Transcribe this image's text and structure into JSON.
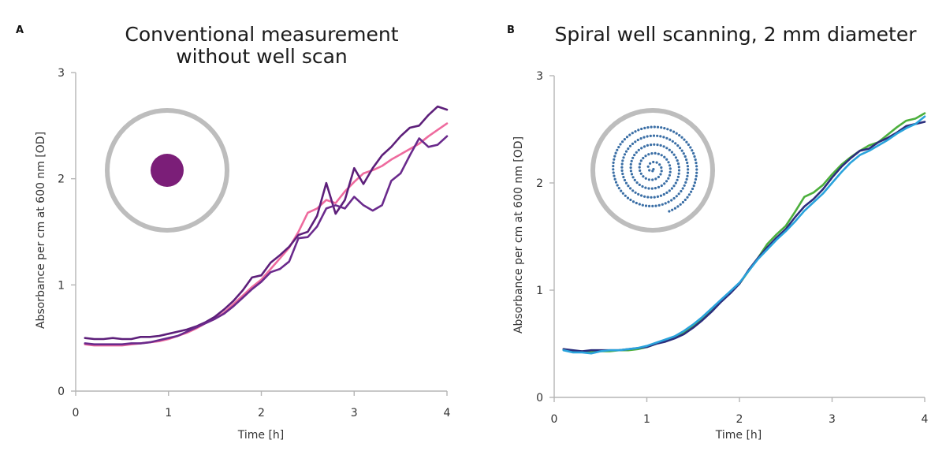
{
  "chart_data": [
    {
      "type": "line",
      "panel_label": "A",
      "title": [
        "Conventional measurement",
        "without well scan"
      ],
      "xlabel": "Time [h]",
      "ylabel": "Absorbance per cm at 600 nm [OD]",
      "xlim": [
        0,
        4
      ],
      "ylim": [
        0,
        3
      ],
      "xticks": [
        "0",
        "1",
        "2",
        "3",
        "4"
      ],
      "yticks": [
        "0",
        "1",
        "2",
        "3"
      ],
      "grid": false,
      "legend": "none",
      "inset": "well-single-spot",
      "inset_colors": {
        "ring": "#bdbdbd",
        "spot": "#7b1e78"
      },
      "series": [
        {
          "color": "#ee6b9e",
          "points": [
            [
              0.1,
              0.44
            ],
            [
              0.2,
              0.43
            ],
            [
              0.3,
              0.43
            ],
            [
              0.4,
              0.43
            ],
            [
              0.5,
              0.43
            ],
            [
              0.6,
              0.44
            ],
            [
              0.7,
              0.45
            ],
            [
              0.8,
              0.46
            ],
            [
              0.9,
              0.47
            ],
            [
              1.0,
              0.49
            ],
            [
              1.1,
              0.52
            ],
            [
              1.2,
              0.55
            ],
            [
              1.3,
              0.59
            ],
            [
              1.4,
              0.64
            ],
            [
              1.5,
              0.68
            ],
            [
              1.6,
              0.74
            ],
            [
              1.7,
              0.82
            ],
            [
              1.8,
              0.9
            ],
            [
              1.9,
              0.98
            ],
            [
              2.0,
              1.05
            ],
            [
              2.1,
              1.15
            ],
            [
              2.2,
              1.25
            ],
            [
              2.3,
              1.35
            ],
            [
              2.4,
              1.5
            ],
            [
              2.5,
              1.68
            ],
            [
              2.6,
              1.72
            ],
            [
              2.7,
              1.8
            ],
            [
              2.8,
              1.77
            ],
            [
              2.9,
              1.88
            ],
            [
              3.0,
              1.97
            ],
            [
              3.1,
              2.05
            ],
            [
              3.2,
              2.08
            ],
            [
              3.3,
              2.12
            ],
            [
              3.4,
              2.18
            ],
            [
              3.5,
              2.23
            ],
            [
              3.6,
              2.28
            ],
            [
              3.7,
              2.33
            ],
            [
              3.8,
              2.4
            ],
            [
              3.9,
              2.46
            ],
            [
              4.0,
              2.52
            ]
          ]
        },
        {
          "color": "#5d1f7a",
          "points": [
            [
              0.1,
              0.5
            ],
            [
              0.2,
              0.49
            ],
            [
              0.3,
              0.49
            ],
            [
              0.4,
              0.5
            ],
            [
              0.5,
              0.49
            ],
            [
              0.6,
              0.49
            ],
            [
              0.7,
              0.51
            ],
            [
              0.8,
              0.51
            ],
            [
              0.9,
              0.52
            ],
            [
              1.0,
              0.54
            ],
            [
              1.1,
              0.56
            ],
            [
              1.2,
              0.58
            ],
            [
              1.3,
              0.61
            ],
            [
              1.4,
              0.65
            ],
            [
              1.5,
              0.7
            ],
            [
              1.6,
              0.77
            ],
            [
              1.7,
              0.85
            ],
            [
              1.8,
              0.95
            ],
            [
              1.9,
              1.07
            ],
            [
              2.0,
              1.09
            ],
            [
              2.1,
              1.21
            ],
            [
              2.2,
              1.28
            ],
            [
              2.3,
              1.36
            ],
            [
              2.4,
              1.47
            ],
            [
              2.5,
              1.5
            ],
            [
              2.6,
              1.65
            ],
            [
              2.7,
              1.96
            ],
            [
              2.8,
              1.67
            ],
            [
              2.9,
              1.8
            ],
            [
              3.0,
              2.1
            ],
            [
              3.1,
              1.95
            ],
            [
              3.2,
              2.1
            ],
            [
              3.3,
              2.22
            ],
            [
              3.4,
              2.3
            ],
            [
              3.5,
              2.4
            ],
            [
              3.6,
              2.48
            ],
            [
              3.7,
              2.5
            ],
            [
              3.8,
              2.6
            ],
            [
              3.9,
              2.68
            ],
            [
              4.0,
              2.65
            ]
          ]
        },
        {
          "color": "#6a2a8c",
          "points": [
            [
              0.1,
              0.45
            ],
            [
              0.2,
              0.44
            ],
            [
              0.3,
              0.44
            ],
            [
              0.4,
              0.44
            ],
            [
              0.5,
              0.44
            ],
            [
              0.6,
              0.45
            ],
            [
              0.7,
              0.45
            ],
            [
              0.8,
              0.46
            ],
            [
              0.9,
              0.48
            ],
            [
              1.0,
              0.5
            ],
            [
              1.1,
              0.52
            ],
            [
              1.2,
              0.56
            ],
            [
              1.3,
              0.6
            ],
            [
              1.4,
              0.64
            ],
            [
              1.5,
              0.68
            ],
            [
              1.6,
              0.73
            ],
            [
              1.7,
              0.8
            ],
            [
              1.8,
              0.88
            ],
            [
              1.9,
              0.96
            ],
            [
              2.0,
              1.03
            ],
            [
              2.1,
              1.12
            ],
            [
              2.2,
              1.15
            ],
            [
              2.3,
              1.22
            ],
            [
              2.4,
              1.44
            ],
            [
              2.5,
              1.45
            ],
            [
              2.6,
              1.55
            ],
            [
              2.7,
              1.72
            ],
            [
              2.8,
              1.75
            ],
            [
              2.9,
              1.72
            ],
            [
              3.0,
              1.83
            ],
            [
              3.1,
              1.75
            ],
            [
              3.2,
              1.7
            ],
            [
              3.3,
              1.75
            ],
            [
              3.4,
              1.98
            ],
            [
              3.5,
              2.05
            ],
            [
              3.6,
              2.22
            ],
            [
              3.7,
              2.38
            ],
            [
              3.8,
              2.3
            ],
            [
              3.9,
              2.32
            ],
            [
              4.0,
              2.4
            ]
          ]
        }
      ]
    },
    {
      "type": "line",
      "panel_label": "B",
      "title": [
        "Spiral well scanning, 2 mm diameter"
      ],
      "xlabel": "Time [h]",
      "ylabel": "Absorbance per cm at 600 nm [OD]",
      "xlim": [
        0,
        4
      ],
      "ylim": [
        0,
        3
      ],
      "xticks": [
        "0",
        "1",
        "2",
        "3",
        "4"
      ],
      "yticks": [
        "0",
        "1",
        "2",
        "3"
      ],
      "grid": false,
      "legend": "none",
      "inset": "well-spiral-scan",
      "inset_colors": {
        "ring": "#bdbdbd",
        "spiral": "#3a6ea5"
      },
      "series": [
        {
          "color": "#4caf3c",
          "points": [
            [
              0.1,
              0.45
            ],
            [
              0.2,
              0.43
            ],
            [
              0.3,
              0.43
            ],
            [
              0.4,
              0.42
            ],
            [
              0.5,
              0.43
            ],
            [
              0.6,
              0.43
            ],
            [
              0.7,
              0.44
            ],
            [
              0.8,
              0.44
            ],
            [
              0.9,
              0.45
            ],
            [
              1.0,
              0.47
            ],
            [
              1.1,
              0.5
            ],
            [
              1.2,
              0.53
            ],
            [
              1.3,
              0.56
            ],
            [
              1.4,
              0.61
            ],
            [
              1.5,
              0.67
            ],
            [
              1.6,
              0.74
            ],
            [
              1.7,
              0.82
            ],
            [
              1.8,
              0.9
            ],
            [
              1.9,
              0.98
            ],
            [
              2.0,
              1.06
            ],
            [
              2.1,
              1.18
            ],
            [
              2.2,
              1.3
            ],
            [
              2.3,
              1.43
            ],
            [
              2.4,
              1.52
            ],
            [
              2.5,
              1.6
            ],
            [
              2.6,
              1.73
            ],
            [
              2.7,
              1.87
            ],
            [
              2.8,
              1.91
            ],
            [
              2.9,
              1.98
            ],
            [
              3.0,
              2.08
            ],
            [
              3.1,
              2.17
            ],
            [
              3.2,
              2.24
            ],
            [
              3.3,
              2.3
            ],
            [
              3.4,
              2.35
            ],
            [
              3.5,
              2.38
            ],
            [
              3.6,
              2.45
            ],
            [
              3.7,
              2.52
            ],
            [
              3.8,
              2.58
            ],
            [
              3.9,
              2.6
            ],
            [
              4.0,
              2.65
            ]
          ]
        },
        {
          "color": "#2b2d7c",
          "points": [
            [
              0.1,
              0.45
            ],
            [
              0.2,
              0.44
            ],
            [
              0.3,
              0.43
            ],
            [
              0.4,
              0.44
            ],
            [
              0.5,
              0.44
            ],
            [
              0.6,
              0.44
            ],
            [
              0.7,
              0.44
            ],
            [
              0.8,
              0.45
            ],
            [
              0.9,
              0.46
            ],
            [
              1.0,
              0.47
            ],
            [
              1.1,
              0.5
            ],
            [
              1.2,
              0.52
            ],
            [
              1.3,
              0.55
            ],
            [
              1.4,
              0.59
            ],
            [
              1.5,
              0.65
            ],
            [
              1.6,
              0.72
            ],
            [
              1.7,
              0.8
            ],
            [
              1.8,
              0.89
            ],
            [
              1.9,
              0.97
            ],
            [
              2.0,
              1.06
            ],
            [
              2.1,
              1.19
            ],
            [
              2.2,
              1.3
            ],
            [
              2.3,
              1.4
            ],
            [
              2.4,
              1.49
            ],
            [
              2.5,
              1.57
            ],
            [
              2.6,
              1.68
            ],
            [
              2.7,
              1.78
            ],
            [
              2.8,
              1.85
            ],
            [
              2.9,
              1.94
            ],
            [
              3.0,
              2.05
            ],
            [
              3.1,
              2.15
            ],
            [
              3.2,
              2.23
            ],
            [
              3.3,
              2.3
            ],
            [
              3.4,
              2.32
            ],
            [
              3.5,
              2.38
            ],
            [
              3.6,
              2.42
            ],
            [
              3.7,
              2.47
            ],
            [
              3.8,
              2.53
            ],
            [
              3.9,
              2.55
            ],
            [
              4.0,
              2.57
            ]
          ]
        },
        {
          "color": "#2aa3dc",
          "points": [
            [
              0.1,
              0.44
            ],
            [
              0.2,
              0.42
            ],
            [
              0.3,
              0.42
            ],
            [
              0.4,
              0.41
            ],
            [
              0.5,
              0.43
            ],
            [
              0.6,
              0.44
            ],
            [
              0.7,
              0.44
            ],
            [
              0.8,
              0.45
            ],
            [
              0.9,
              0.46
            ],
            [
              1.0,
              0.48
            ],
            [
              1.1,
              0.51
            ],
            [
              1.2,
              0.54
            ],
            [
              1.3,
              0.57
            ],
            [
              1.4,
              0.62
            ],
            [
              1.5,
              0.68
            ],
            [
              1.6,
              0.75
            ],
            [
              1.7,
              0.83
            ],
            [
              1.8,
              0.91
            ],
            [
              1.9,
              0.99
            ],
            [
              2.0,
              1.07
            ],
            [
              2.1,
              1.18
            ],
            [
              2.2,
              1.29
            ],
            [
              2.3,
              1.38
            ],
            [
              2.4,
              1.47
            ],
            [
              2.5,
              1.55
            ],
            [
              2.6,
              1.64
            ],
            [
              2.7,
              1.74
            ],
            [
              2.8,
              1.82
            ],
            [
              2.9,
              1.9
            ],
            [
              3.0,
              2.0
            ],
            [
              3.1,
              2.1
            ],
            [
              3.2,
              2.19
            ],
            [
              3.3,
              2.26
            ],
            [
              3.4,
              2.3
            ],
            [
              3.5,
              2.35
            ],
            [
              3.6,
              2.4
            ],
            [
              3.7,
              2.46
            ],
            [
              3.8,
              2.51
            ],
            [
              3.9,
              2.55
            ],
            [
              4.0,
              2.62
            ]
          ]
        }
      ]
    }
  ]
}
